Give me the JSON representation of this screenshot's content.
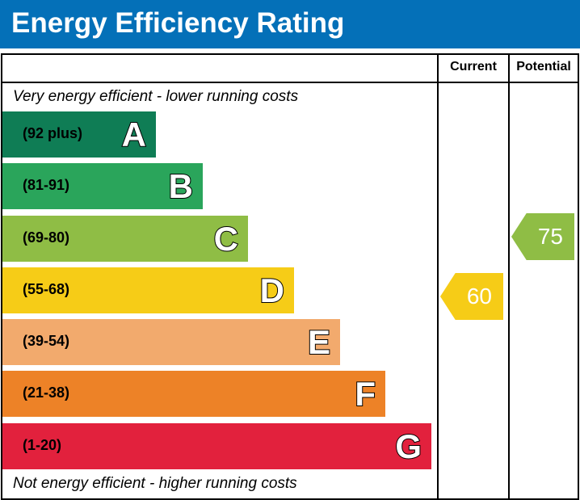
{
  "title": "Energy Efficiency Rating",
  "columns": {
    "current": "Current",
    "potential": "Potential"
  },
  "top_note": "Very energy efficient - lower running costs",
  "bottom_note": "Not energy efficient - higher running costs",
  "chart_data": {
    "type": "bar",
    "bands": [
      {
        "letter": "A",
        "range": "(92 plus)",
        "color": "#0f7d55"
      },
      {
        "letter": "B",
        "range": "(81-91)",
        "color": "#2aa55b"
      },
      {
        "letter": "C",
        "range": "(69-80)",
        "color": "#8fbd45"
      },
      {
        "letter": "D",
        "range": "(55-68)",
        "color": "#f6cc17"
      },
      {
        "letter": "E",
        "range": "(39-54)",
        "color": "#f2aa6d"
      },
      {
        "letter": "F",
        "range": "(21-38)",
        "color": "#ed8227"
      },
      {
        "letter": "G",
        "range": "(1-20)",
        "color": "#e2213d"
      }
    ],
    "current": {
      "value": "60",
      "band": "D",
      "color": "#f6cc17"
    },
    "potential": {
      "value": "75",
      "band": "C",
      "color": "#8fbd45"
    }
  }
}
